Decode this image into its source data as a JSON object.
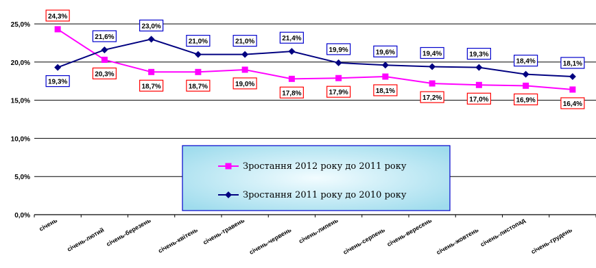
{
  "chart_data": {
    "type": "line",
    "categories": [
      "січень",
      "січень-лютий",
      "січень-березень",
      "січень-квітень",
      "січень-травень",
      "січень-червень",
      "січень-липень",
      "січень-серпень",
      "січень-вересень",
      "січень-жовтень",
      "січень-листопад",
      "січень-грудень"
    ],
    "series": [
      {
        "name": "Зростання 2012 року до 2011 року",
        "color": "#ff00ff",
        "marker": "square",
        "label_border": "#ff0000",
        "values": [
          24.3,
          20.3,
          18.7,
          18.7,
          19.0,
          17.8,
          17.9,
          18.1,
          17.2,
          17.0,
          16.9,
          16.4
        ],
        "labels": [
          "24,3%",
          "20,3%",
          "18,7%",
          "18,7%",
          "19,0%",
          "17,8%",
          "17,9%",
          "18,1%",
          "17,2%",
          "17,0%",
          "16,9%",
          "16,4%"
        ]
      },
      {
        "name": "Зростання 2011 року до 2010 року",
        "color": "#000080",
        "marker": "diamond",
        "label_border": "#0000cc",
        "values": [
          19.3,
          21.6,
          23.0,
          21.0,
          21.0,
          21.4,
          19.9,
          19.6,
          19.4,
          19.3,
          18.4,
          18.1
        ],
        "labels": [
          "19,3%",
          "21,6%",
          "23,0%",
          "21,0%",
          "21,0%",
          "21,4%",
          "19,9%",
          "19,6%",
          "19,4%",
          "19,3%",
          "18,4%",
          "18,1%"
        ]
      }
    ],
    "ylim": [
      0,
      25
    ],
    "yticks": [
      0,
      5,
      10,
      15,
      20,
      25
    ],
    "ytick_labels": [
      "0,0%",
      "5,0%",
      "10,0%",
      "15,0%",
      "20,0%",
      "25,0%"
    ],
    "grid": true,
    "legend_position": "center",
    "legend_background": "#c6eef6"
  }
}
